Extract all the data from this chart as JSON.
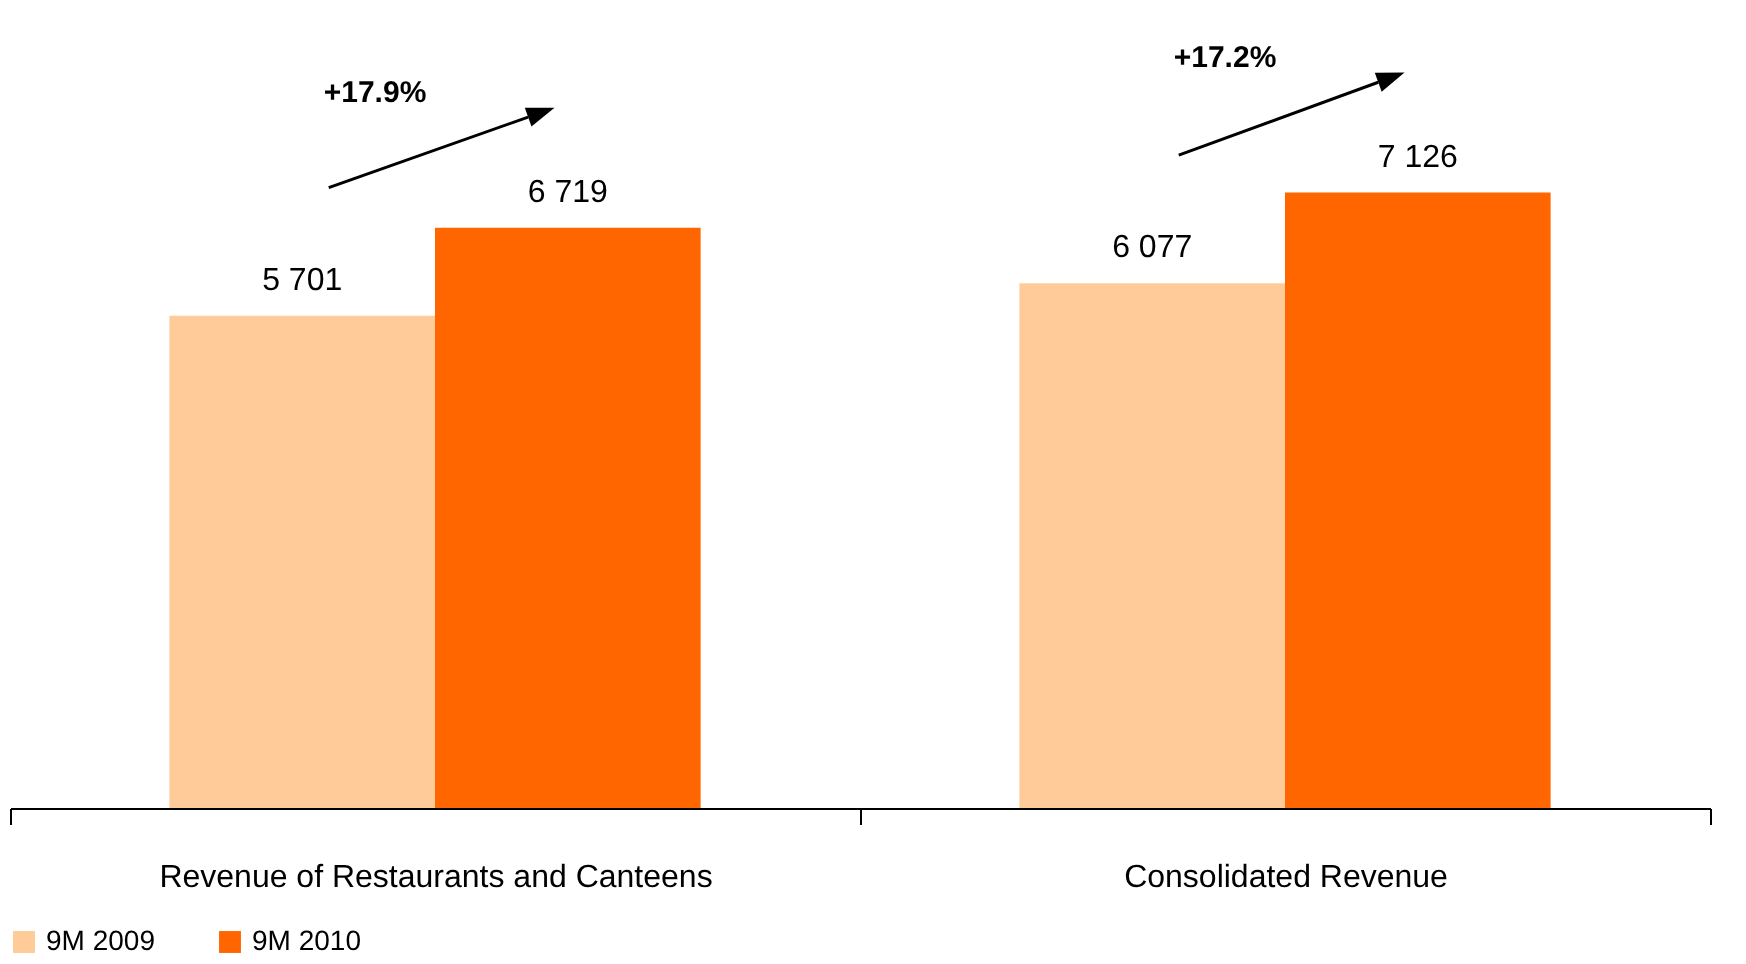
{
  "chart_data": {
    "type": "bar",
    "categories": [
      "Revenue of Restaurants and Canteens",
      "Consolidated Revenue"
    ],
    "series": [
      {
        "name": "9M 2009",
        "color": "#ffcc99",
        "values": [
          5701,
          6077
        ],
        "value_labels": [
          "5 701",
          "6 077"
        ]
      },
      {
        "name": "9M 2010",
        "color": "#ff6600",
        "values": [
          6719,
          7126
        ],
        "value_labels": [
          "6 719",
          "7 126"
        ]
      }
    ],
    "annotations": [
      "+17.9%",
      "+17.2%"
    ],
    "legend": "bottom"
  }
}
